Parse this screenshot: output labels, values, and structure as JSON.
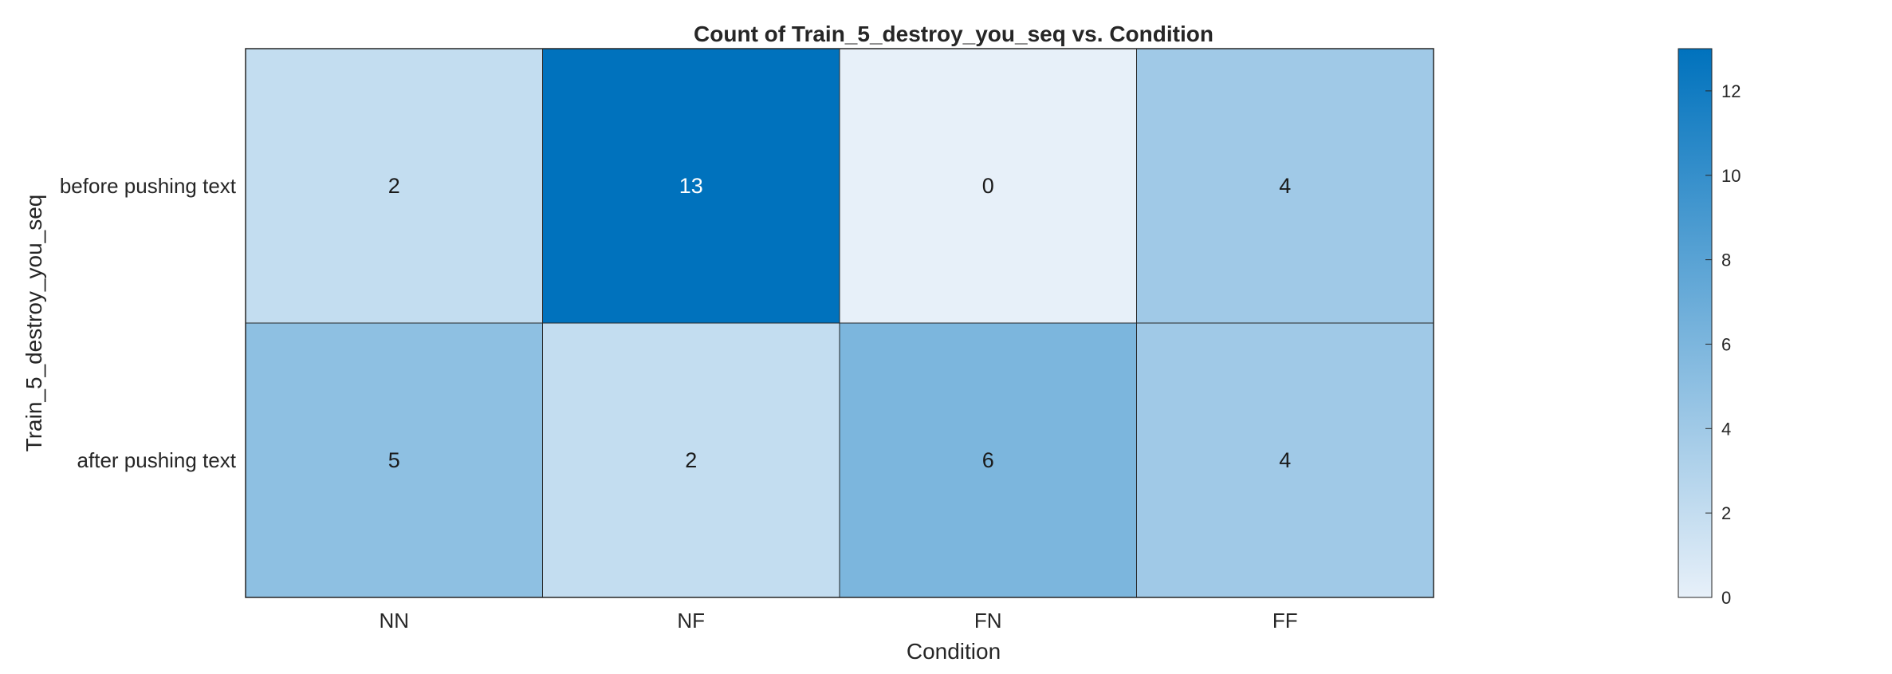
{
  "chart_data": {
    "type": "heatmap",
    "title": "Count of Train_5_destroy_you_seq vs. Condition",
    "xlabel": "Condition",
    "ylabel": "Train_5_destroy_you_seq",
    "x_categories": [
      "NN",
      "NF",
      "FN",
      "FF"
    ],
    "y_categories": [
      "before pushing text",
      "after pushing text"
    ],
    "values": [
      [
        2,
        13,
        0,
        4
      ],
      [
        5,
        2,
        6,
        4
      ]
    ],
    "colorbar": {
      "min": 0,
      "max": 13,
      "ticks": [
        0,
        2,
        4,
        6,
        8,
        10,
        12
      ],
      "low_color": "#e7f0f9",
      "high_color": "#0072bd"
    },
    "cell_text_dark": "#1a1a1a",
    "cell_text_light": "#ffffff",
    "grid": false,
    "legend": "none"
  }
}
